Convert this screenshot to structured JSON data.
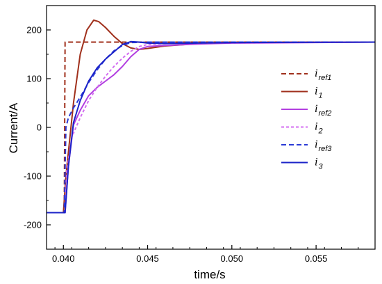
{
  "chart_data": {
    "type": "line",
    "xlabel": "time/s",
    "ylabel": "Current/A",
    "xlim": [
      0.039,
      0.0585
    ],
    "ylim": [
      -250,
      250
    ],
    "x_ticks": [
      0.04,
      0.045,
      0.05,
      0.055
    ],
    "x_tick_labels": [
      "0.040",
      "0.045",
      "0.050",
      "0.055"
    ],
    "y_ticks": [
      -200,
      -100,
      0,
      100,
      200
    ],
    "y_tick_labels": [
      "-200",
      "-100",
      "0",
      "100",
      "200"
    ],
    "grid": false,
    "legend_placement": "right",
    "series": [
      {
        "name": "i",
        "name_sub": "ref1",
        "color": "#a0301c",
        "dash": "dashed",
        "x": [
          0.039,
          0.04005,
          0.0401,
          0.0412,
          0.0425,
          0.045,
          0.05,
          0.0585
        ],
        "y": [
          -175,
          -175,
          175,
          175,
          175,
          175,
          175,
          175
        ]
      },
      {
        "name": "i",
        "name_sub": "1",
        "color": "#a0301c",
        "dash": "solid",
        "x": [
          0.039,
          0.04,
          0.04015,
          0.0406,
          0.041,
          0.0414,
          0.0418,
          0.0421,
          0.0425,
          0.043,
          0.0435,
          0.044,
          0.0445,
          0.045,
          0.046,
          0.048,
          0.05,
          0.0585
        ],
        "y": [
          -175,
          -175,
          -100,
          50,
          150,
          200,
          220,
          217,
          205,
          187,
          172,
          163,
          160,
          162,
          167,
          172,
          174,
          175
        ]
      },
      {
        "name": "i",
        "name_sub": "ref2",
        "color": "#b23fe0",
        "dash": "solid",
        "x": [
          0.039,
          0.0401,
          0.0403,
          0.0406,
          0.041,
          0.0415,
          0.042,
          0.0425,
          0.043,
          0.0435,
          0.044,
          0.0445,
          0.045,
          0.046,
          0.048,
          0.05,
          0.0585
        ],
        "y": [
          -175,
          -175,
          -80,
          5,
          35,
          65,
          82,
          95,
          108,
          125,
          145,
          160,
          166,
          168,
          171,
          173,
          175
        ]
      },
      {
        "name": "i",
        "name_sub": "2",
        "color": "#d36ef0",
        "dash": "dotted",
        "x": [
          0.039,
          0.0401,
          0.0402,
          0.0405,
          0.041,
          0.0415,
          0.042,
          0.0425,
          0.043,
          0.0435,
          0.044,
          0.0445,
          0.045,
          0.046,
          0.048,
          0.05,
          0.0585
        ],
        "y": [
          -175,
          -175,
          -90,
          -20,
          20,
          55,
          82,
          105,
          125,
          142,
          156,
          166,
          170,
          172,
          173,
          174,
          175
        ]
      },
      {
        "name": "i",
        "name_sub": "ref3",
        "color": "#2a3ad6",
        "dash": "dashed",
        "x": [
          0.039,
          0.04005,
          0.04015,
          0.0403,
          0.0406,
          0.041,
          0.0415,
          0.042,
          0.0425,
          0.043,
          0.0435,
          0.044,
          0.045,
          0.046,
          0.048,
          0.05,
          0.0585
        ],
        "y": [
          -175,
          -175,
          0,
          20,
          40,
          62,
          92,
          118,
          140,
          157,
          168,
          174,
          175,
          175,
          175,
          175,
          175
        ]
      },
      {
        "name": "i",
        "name_sub": "3",
        "color": "#1b23c8",
        "dash": "solid",
        "x": [
          0.039,
          0.0401,
          0.0403,
          0.0406,
          0.041,
          0.0415,
          0.042,
          0.0425,
          0.043,
          0.0435,
          0.044,
          0.0445,
          0.045,
          0.046,
          0.048,
          0.05,
          0.0585
        ],
        "y": [
          -175,
          -175,
          -80,
          10,
          55,
          95,
          122,
          140,
          155,
          170,
          176,
          175,
          173,
          172,
          173,
          174,
          175
        ]
      }
    ]
  }
}
